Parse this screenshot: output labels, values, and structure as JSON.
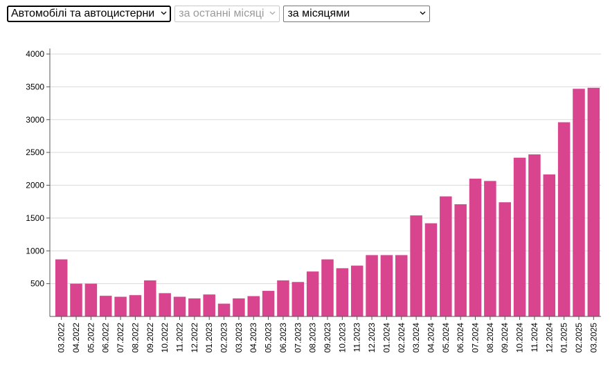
{
  "filters": {
    "category": {
      "value": "Автомобілі та автоцистерни",
      "icon": "chevron-down-icon"
    },
    "period": {
      "value": "за останні місяці",
      "disabled": true,
      "icon": "chevron-down-icon"
    },
    "grouping": {
      "value": "за місяцями",
      "icon": "chevron-down-icon"
    }
  },
  "chart_data": {
    "type": "bar",
    "title": "",
    "xlabel": "",
    "ylabel": "",
    "ylim": [
      0,
      4000
    ],
    "y_ticks": [
      500,
      1000,
      1500,
      2000,
      2500,
      3000,
      3500,
      4000
    ],
    "grid": "horizontal",
    "bar_color": "#d9448f",
    "categories": [
      "03.2022",
      "04.2022",
      "05.2022",
      "06.2022",
      "07.2022",
      "08.2022",
      "09.2022",
      "10.2022",
      "11.2022",
      "12.2022",
      "01.2023",
      "02.2023",
      "03.2023",
      "04.2023",
      "05.2023",
      "06.2023",
      "07.2023",
      "08.2023",
      "09.2023",
      "10.2023",
      "11.2023",
      "12.2023",
      "01.2024",
      "02.2024",
      "03.2024",
      "04.2024",
      "05.2024",
      "06.2024",
      "07.2024",
      "08.2024",
      "09.2024",
      "10.2024",
      "11.2024",
      "12.2024",
      "01.2025",
      "02.2025",
      "03.2025"
    ],
    "values": [
      870,
      500,
      500,
      315,
      300,
      325,
      550,
      355,
      300,
      275,
      335,
      195,
      275,
      310,
      390,
      550,
      525,
      685,
      870,
      735,
      775,
      935,
      935,
      935,
      1540,
      1420,
      1830,
      1710,
      2100,
      2065,
      1740,
      2420,
      2470,
      2165,
      2960,
      3470,
      3485
    ]
  }
}
